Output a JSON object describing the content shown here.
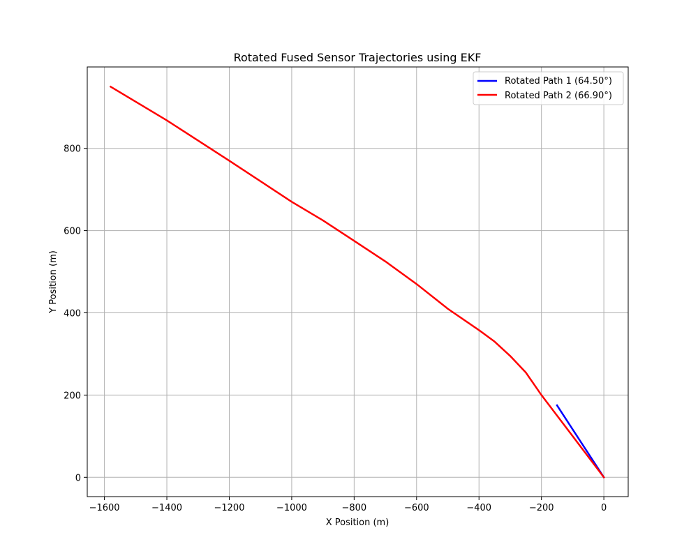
{
  "chart_data": {
    "type": "line",
    "title": "Rotated Fused Sensor Trajectories using EKF",
    "xlabel": "X Position (m)",
    "ylabel": "Y Position (m)",
    "xlim": [
      -1655,
      78
    ],
    "ylim": [
      -47,
      998
    ],
    "xticks": [
      -1600,
      -1400,
      -1200,
      -1000,
      -800,
      -600,
      -400,
      -200,
      0
    ],
    "xtick_labels": [
      "−1600",
      "−1400",
      "−1200",
      "−1000",
      "−800",
      "−600",
      "−400",
      "−200",
      "0"
    ],
    "yticks": [
      0,
      200,
      400,
      600,
      800
    ],
    "ytick_labels": [
      "0",
      "200",
      "400",
      "600",
      "800"
    ],
    "grid": true,
    "legend_position": "upper-right",
    "series": [
      {
        "name": "Rotated Path 1 (64.50°)",
        "color": "#0000ff",
        "x": [
          0,
          -150
        ],
        "y": [
          0,
          175
        ]
      },
      {
        "name": "Rotated Path 2 (66.90°)",
        "color": "#ff0000",
        "x": [
          0,
          -100,
          -200,
          -250,
          -300,
          -350,
          -400,
          -500,
          -600,
          -700,
          -800,
          -900,
          -1000,
          -1200,
          -1400,
          -1580
        ],
        "y": [
          0,
          100,
          200,
          255,
          295,
          330,
          358,
          410,
          470,
          525,
          575,
          625,
          670,
          770,
          868,
          950
        ]
      }
    ]
  }
}
